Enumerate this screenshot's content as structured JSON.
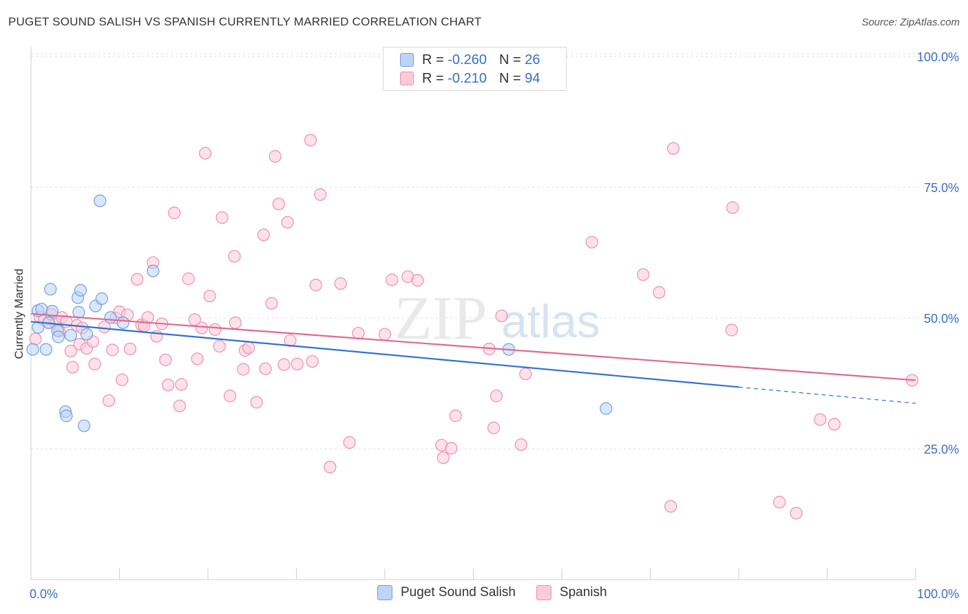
{
  "title": "PUGET SOUND SALISH VS SPANISH CURRENTLY MARRIED CORRELATION CHART",
  "source": "Source: ZipAtlas.com",
  "watermark": {
    "zip": "ZIP",
    "atlas": "atlas"
  },
  "legend": {
    "r_label": "R =",
    "n_label": "N =",
    "series": [
      {
        "name": "Puget Sound Salish",
        "r": "-0.260",
        "n": "26",
        "fill": "#bcd4f5",
        "stroke": "#6f9fe0"
      },
      {
        "name": "Spanish",
        "r": "-0.210",
        "n": "94",
        "fill": "#fbcbd9",
        "stroke": "#ee8fb0"
      }
    ]
  },
  "colors": {
    "blue_line": "#2f6fcf",
    "pink_line": "#e0688f",
    "tick_label": "#3b6fc6",
    "grid": "#dddddd"
  },
  "chart_data": {
    "type": "scatter",
    "title": "PUGET SOUND SALISH VS SPANISH CURRENTLY MARRIED CORRELATION CHART",
    "xlabel": "",
    "ylabel": "Currently Married",
    "xlim": [
      0,
      100
    ],
    "ylim": [
      0,
      100
    ],
    "x_tick_labels": [
      "0.0%",
      "100.0%"
    ],
    "y_ticks": [
      25,
      50,
      75,
      100
    ],
    "y_tick_labels": [
      "25.0%",
      "50.0%",
      "75.0%",
      "100.0%"
    ],
    "grid": true,
    "legend_position": "top-center",
    "series": [
      {
        "name": "Puget Sound Salish",
        "r": -0.26,
        "n": 26,
        "trend": {
          "x0": 0,
          "y0": 49.3,
          "x1": 80,
          "y1": 36.8,
          "dashed_to_x": 100,
          "dashed_to_y": 33.7
        },
        "points": [
          [
            0.2,
            44.0
          ],
          [
            0.8,
            48.2
          ],
          [
            0.8,
            51.4
          ],
          [
            1.2,
            51.7
          ],
          [
            1.7,
            44.0
          ],
          [
            2.0,
            49.1
          ],
          [
            2.2,
            55.5
          ],
          [
            2.4,
            51.3
          ],
          [
            3.0,
            47.6
          ],
          [
            3.1,
            46.4
          ],
          [
            3.9,
            32.1
          ],
          [
            4.0,
            31.3
          ],
          [
            4.5,
            46.7
          ],
          [
            5.3,
            53.9
          ],
          [
            5.4,
            51.1
          ],
          [
            5.6,
            55.3
          ],
          [
            6.0,
            29.4
          ],
          [
            6.3,
            46.9
          ],
          [
            7.3,
            52.3
          ],
          [
            7.8,
            72.4
          ],
          [
            8.0,
            53.7
          ],
          [
            9.0,
            50.1
          ],
          [
            10.4,
            49.1
          ],
          [
            13.8,
            59.0
          ],
          [
            54.0,
            44.0
          ],
          [
            65.0,
            32.7
          ]
        ]
      },
      {
        "name": "Spanish",
        "r": -0.21,
        "n": 94,
        "trend": {
          "x0": 0,
          "y0": 50.8,
          "x1": 100,
          "y1": 38.1
        },
        "points": [
          [
            0.5,
            46.0
          ],
          [
            1.0,
            50.2
          ],
          [
            1.5,
            49.6
          ],
          [
            2.0,
            49.1
          ],
          [
            2.3,
            50.7
          ],
          [
            2.8,
            48.9
          ],
          [
            3.2,
            47.5
          ],
          [
            3.5,
            50.1
          ],
          [
            4.0,
            49.3
          ],
          [
            4.5,
            43.7
          ],
          [
            4.7,
            40.6
          ],
          [
            5.2,
            48.6
          ],
          [
            5.5,
            45.0
          ],
          [
            5.8,
            48.1
          ],
          [
            6.3,
            44.2
          ],
          [
            7.0,
            45.5
          ],
          [
            7.2,
            41.2
          ],
          [
            8.3,
            48.3
          ],
          [
            8.8,
            34.2
          ],
          [
            9.2,
            43.9
          ],
          [
            9.6,
            50.0
          ],
          [
            10.0,
            51.2
          ],
          [
            10.3,
            38.2
          ],
          [
            10.9,
            50.6
          ],
          [
            11.2,
            44.1
          ],
          [
            12.0,
            57.4
          ],
          [
            12.5,
            48.7
          ],
          [
            12.8,
            48.5
          ],
          [
            13.2,
            50.1
          ],
          [
            13.8,
            60.6
          ],
          [
            14.2,
            46.5
          ],
          [
            14.8,
            48.9
          ],
          [
            15.2,
            42.0
          ],
          [
            15.5,
            37.2
          ],
          [
            16.2,
            70.1
          ],
          [
            16.8,
            33.2
          ],
          [
            17.0,
            37.3
          ],
          [
            17.8,
            57.5
          ],
          [
            18.5,
            49.7
          ],
          [
            18.8,
            42.2
          ],
          [
            19.3,
            48.1
          ],
          [
            19.7,
            81.5
          ],
          [
            20.2,
            54.2
          ],
          [
            20.8,
            47.8
          ],
          [
            21.3,
            44.6
          ],
          [
            21.6,
            69.2
          ],
          [
            22.5,
            35.1
          ],
          [
            23.0,
            61.8
          ],
          [
            23.1,
            49.1
          ],
          [
            24.0,
            40.2
          ],
          [
            24.2,
            43.8
          ],
          [
            24.6,
            44.3
          ],
          [
            25.5,
            33.9
          ],
          [
            26.3,
            65.9
          ],
          [
            26.5,
            40.3
          ],
          [
            27.2,
            52.8
          ],
          [
            27.6,
            80.9
          ],
          [
            28.0,
            71.8
          ],
          [
            28.6,
            41.1
          ],
          [
            29.0,
            68.3
          ],
          [
            29.3,
            45.7
          ],
          [
            30.1,
            41.2
          ],
          [
            31.6,
            84.0
          ],
          [
            31.8,
            41.7
          ],
          [
            32.2,
            56.3
          ],
          [
            32.7,
            73.6
          ],
          [
            33.8,
            21.5
          ],
          [
            35.0,
            56.6
          ],
          [
            36.0,
            26.2
          ],
          [
            37.0,
            47.1
          ],
          [
            40.0,
            46.9
          ],
          [
            40.8,
            57.3
          ],
          [
            42.6,
            57.9
          ],
          [
            43.7,
            57.2
          ],
          [
            46.4,
            25.7
          ],
          [
            46.6,
            23.3
          ],
          [
            47.5,
            25.1
          ],
          [
            48.0,
            31.3
          ],
          [
            51.8,
            44.1
          ],
          [
            52.3,
            29.0
          ],
          [
            52.6,
            35.1
          ],
          [
            53.2,
            50.4
          ],
          [
            55.4,
            25.8
          ],
          [
            55.9,
            39.3
          ],
          [
            63.4,
            64.5
          ],
          [
            69.2,
            58.3
          ],
          [
            71.0,
            54.9
          ],
          [
            72.3,
            14.0
          ],
          [
            72.6,
            82.4
          ],
          [
            79.2,
            47.7
          ],
          [
            79.3,
            71.1
          ],
          [
            84.6,
            14.8
          ],
          [
            86.5,
            12.7
          ],
          [
            89.2,
            30.6
          ],
          [
            90.8,
            29.7
          ],
          [
            99.6,
            38.1
          ]
        ]
      }
    ]
  }
}
